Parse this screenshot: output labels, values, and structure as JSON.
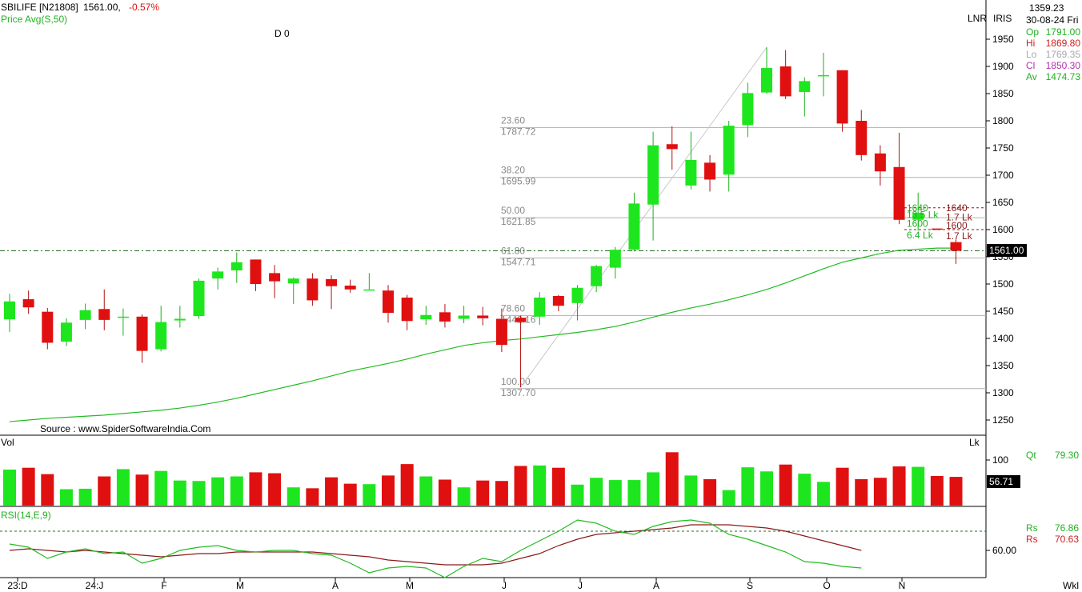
{
  "header": {
    "symbol": "SBILIFE [N21808]",
    "close": "1561.00,",
    "change": "-0.57%",
    "indicator": "Price  Avg(S,50)",
    "marker": "D 0",
    "source": "Source : www.SpiderSoftwareIndia.Com"
  },
  "panel_labels": {
    "lnr": "LNR",
    "iris": "IRIS",
    "vol": "Vol",
    "vol_unit": "Lk",
    "rsi": "RSI(14,E,9)",
    "period": "Wkl"
  },
  "info": {
    "cursor_value": "1359.23",
    "date": "30-08-24 Fri",
    "rows": [
      {
        "label": "Op",
        "value": "1791.00",
        "color": "#22b022"
      },
      {
        "label": "Hi",
        "value": "1869.80",
        "color": "#cc2020"
      },
      {
        "label": "Lo",
        "value": "1769.35",
        "color": "#a8a8a8"
      },
      {
        "label": "Cl",
        "value": "1850.30",
        "color": "#b030b0"
      },
      {
        "label": "Av",
        "value": "1474.73",
        "color": "#22b022"
      }
    ],
    "qt": {
      "label": "Qt",
      "value": "79.30"
    },
    "vol_tag": "56.71",
    "price_tag": "1561.00",
    "rs1": {
      "label": "Rs",
      "value": "76.86"
    },
    "rs2": {
      "label": "Rs",
      "value": "70.63"
    }
  },
  "colors": {
    "up": "#1ee61e",
    "down": "#e01010",
    "ma": "#22bb22",
    "signal": "#8b1a1a",
    "fib": "#b0b0b0",
    "text": "#000000"
  },
  "chart_data": {
    "type": "candlestick",
    "price_axis": {
      "ticks": [
        1250,
        1300,
        1350,
        1400,
        1450,
        1500,
        1550,
        1600,
        1650,
        1700,
        1750,
        1800,
        1850,
        1900,
        1950
      ]
    },
    "time_axis": [
      "23:D",
      "24:J",
      "F",
      "M",
      "A",
      "M",
      "J",
      "J",
      "A",
      "S",
      "O",
      "N"
    ],
    "candles": [
      {
        "o": 1435,
        "h": 1482,
        "l": 1412,
        "c": 1468
      },
      {
        "o": 1472,
        "h": 1488,
        "l": 1445,
        "c": 1457
      },
      {
        "o": 1449,
        "h": 1456,
        "l": 1380,
        "c": 1392
      },
      {
        "o": 1394,
        "h": 1437,
        "l": 1386,
        "c": 1429
      },
      {
        "o": 1434,
        "h": 1464,
        "l": 1417,
        "c": 1452
      },
      {
        "o": 1454,
        "h": 1490,
        "l": 1415,
        "c": 1434
      },
      {
        "o": 1438,
        "h": 1455,
        "l": 1405,
        "c": 1440
      },
      {
        "o": 1440,
        "h": 1444,
        "l": 1355,
        "c": 1377
      },
      {
        "o": 1380,
        "h": 1460,
        "l": 1376,
        "c": 1430
      },
      {
        "o": 1433,
        "h": 1460,
        "l": 1420,
        "c": 1436
      },
      {
        "o": 1441,
        "h": 1510,
        "l": 1436,
        "c": 1506
      },
      {
        "o": 1510,
        "h": 1530,
        "l": 1490,
        "c": 1523
      },
      {
        "o": 1525,
        "h": 1558,
        "l": 1502,
        "c": 1540
      },
      {
        "o": 1545,
        "h": 1545,
        "l": 1487,
        "c": 1500
      },
      {
        "o": 1520,
        "h": 1535,
        "l": 1474,
        "c": 1505
      },
      {
        "o": 1501,
        "h": 1512,
        "l": 1463,
        "c": 1510
      },
      {
        "o": 1510,
        "h": 1520,
        "l": 1460,
        "c": 1470
      },
      {
        "o": 1509,
        "h": 1516,
        "l": 1454,
        "c": 1496
      },
      {
        "o": 1497,
        "h": 1508,
        "l": 1484,
        "c": 1490
      },
      {
        "o": 1490,
        "h": 1520,
        "l": 1490,
        "c": 1490
      },
      {
        "o": 1488,
        "h": 1498,
        "l": 1429,
        "c": 1447
      },
      {
        "o": 1475,
        "h": 1480,
        "l": 1415,
        "c": 1432
      },
      {
        "o": 1435,
        "h": 1460,
        "l": 1425,
        "c": 1443
      },
      {
        "o": 1448,
        "h": 1463,
        "l": 1420,
        "c": 1431
      },
      {
        "o": 1436,
        "h": 1460,
        "l": 1428,
        "c": 1442
      },
      {
        "o": 1442,
        "h": 1458,
        "l": 1424,
        "c": 1437
      },
      {
        "o": 1436,
        "h": 1455,
        "l": 1375,
        "c": 1388
      },
      {
        "o": 1438,
        "h": 1442,
        "l": 1310,
        "c": 1430
      },
      {
        "o": 1440,
        "h": 1485,
        "l": 1425,
        "c": 1475
      },
      {
        "o": 1478,
        "h": 1480,
        "l": 1450,
        "c": 1460
      },
      {
        "o": 1465,
        "h": 1498,
        "l": 1433,
        "c": 1493
      },
      {
        "o": 1496,
        "h": 1535,
        "l": 1485,
        "c": 1533
      },
      {
        "o": 1530,
        "h": 1568,
        "l": 1510,
        "c": 1563
      },
      {
        "o": 1563,
        "h": 1668,
        "l": 1560,
        "c": 1648
      },
      {
        "o": 1646,
        "h": 1780,
        "l": 1580,
        "c": 1755
      },
      {
        "o": 1757,
        "h": 1790,
        "l": 1710,
        "c": 1748
      },
      {
        "o": 1681,
        "h": 1780,
        "l": 1674,
        "c": 1728
      },
      {
        "o": 1723,
        "h": 1737,
        "l": 1670,
        "c": 1692
      },
      {
        "o": 1701,
        "h": 1800,
        "l": 1670,
        "c": 1791
      },
      {
        "o": 1792,
        "h": 1870,
        "l": 1770,
        "c": 1851
      },
      {
        "o": 1852,
        "h": 1935,
        "l": 1850,
        "c": 1897
      },
      {
        "o": 1900,
        "h": 1930,
        "l": 1840,
        "c": 1845
      },
      {
        "o": 1853,
        "h": 1880,
        "l": 1808,
        "c": 1873
      },
      {
        "o": 1884,
        "h": 1925,
        "l": 1845,
        "c": 1884
      },
      {
        "o": 1893,
        "h": 1893,
        "l": 1780,
        "c": 1795
      },
      {
        "o": 1800,
        "h": 1820,
        "l": 1727,
        "c": 1737
      },
      {
        "o": 1740,
        "h": 1755,
        "l": 1681,
        "c": 1707
      },
      {
        "o": 1715,
        "h": 1778,
        "l": 1610,
        "c": 1618
      },
      {
        "o": 1618,
        "h": 1668,
        "l": 1598,
        "c": 1631
      },
      {
        "o": 1602,
        "h": 1602,
        "l": 1599,
        "c": 1601
      },
      {
        "o": 1577,
        "h": 1582,
        "l": 1537,
        "c": 1561
      }
    ],
    "ma50": [
      1247,
      1250,
      1253,
      1255,
      1257,
      1259,
      1262,
      1265,
      1268,
      1272,
      1277,
      1283,
      1290,
      1298,
      1306,
      1314,
      1322,
      1331,
      1340,
      1347,
      1354,
      1362,
      1371,
      1379,
      1387,
      1392,
      1396,
      1399,
      1403,
      1407,
      1411,
      1416,
      1422,
      1430,
      1439,
      1448,
      1456,
      1463,
      1471,
      1480,
      1490,
      1502,
      1515,
      1528,
      1540,
      1548,
      1556,
      1562,
      1564,
      1566,
      1566
    ],
    "volume": [
      79,
      83,
      69,
      36,
      37,
      64,
      80,
      68,
      76,
      55,
      54,
      62,
      64,
      73,
      71,
      40,
      38,
      62,
      48,
      47,
      66,
      91,
      64,
      57,
      40,
      55,
      54,
      87,
      88,
      83,
      46,
      61,
      56,
      56,
      73,
      117,
      66,
      58,
      34,
      84,
      75,
      90,
      70,
      52,
      83,
      58,
      61,
      86,
      85,
      65,
      63
    ],
    "volume_ticks": [
      100
    ],
    "rsi": [
      64,
      62,
      55,
      59,
      61,
      58,
      59,
      52,
      55,
      60,
      62,
      63,
      60,
      59,
      60,
      60,
      58,
      57,
      52,
      46,
      49,
      50,
      49,
      43,
      50,
      55,
      53,
      60,
      66,
      72,
      79,
      77,
      72,
      70,
      75,
      78,
      79,
      77,
      70,
      67,
      63,
      59,
      53,
      52,
      50,
      49
    ],
    "rsi_signal": [
      60,
      61,
      60,
      59,
      60,
      59,
      58,
      57,
      56,
      57,
      58,
      58,
      59,
      59,
      59,
      59,
      59,
      58,
      57,
      56,
      54,
      53,
      52,
      51,
      51,
      51,
      52,
      55,
      58,
      63,
      67,
      70,
      71,
      72,
      73,
      74,
      76,
      76,
      76,
      75,
      74,
      72,
      69,
      66,
      63,
      60
    ],
    "rsi_ticks": [
      60
    ],
    "fibonacci": [
      {
        "pct": "23.60",
        "price": "1787.72",
        "level": 1787.72
      },
      {
        "pct": "38.20",
        "price": "1695.99",
        "level": 1695.99
      },
      {
        "pct": "50.00",
        "price": "1621.85",
        "level": 1621.85
      },
      {
        "pct": "61.80",
        "price": "1547.71",
        "level": 1547.71
      },
      {
        "pct": "78.60",
        "price": "1442.16",
        "level": 1442.16
      },
      {
        "pct": "100.00",
        "price": "1307.70",
        "level": 1307.7
      }
    ],
    "annotations": [
      {
        "text": "1640",
        "level": 1640,
        "color": "#22b022",
        "side": "left"
      },
      {
        "text": "13.5 Lk",
        "level": 1627,
        "color": "#22b022",
        "side": "left"
      },
      {
        "text": "1600",
        "level": 1611,
        "color": "#22b022",
        "side": "left"
      },
      {
        "text": "6.4 Lk",
        "level": 1590,
        "color": "#22b022",
        "side": "left"
      },
      {
        "text": "1640",
        "level": 1640,
        "color": "#8b1a1a",
        "side": "right"
      },
      {
        "text": "1.7 Lk",
        "level": 1623,
        "color": "#8b1a1a",
        "side": "right"
      },
      {
        "text": "1600",
        "level": 1607,
        "color": "#8b1a1a",
        "side": "right"
      },
      {
        "text": "1.7 Lk",
        "level": 1588,
        "color": "#8b1a1a",
        "side": "right"
      }
    ],
    "current_price": 1561.0
  }
}
